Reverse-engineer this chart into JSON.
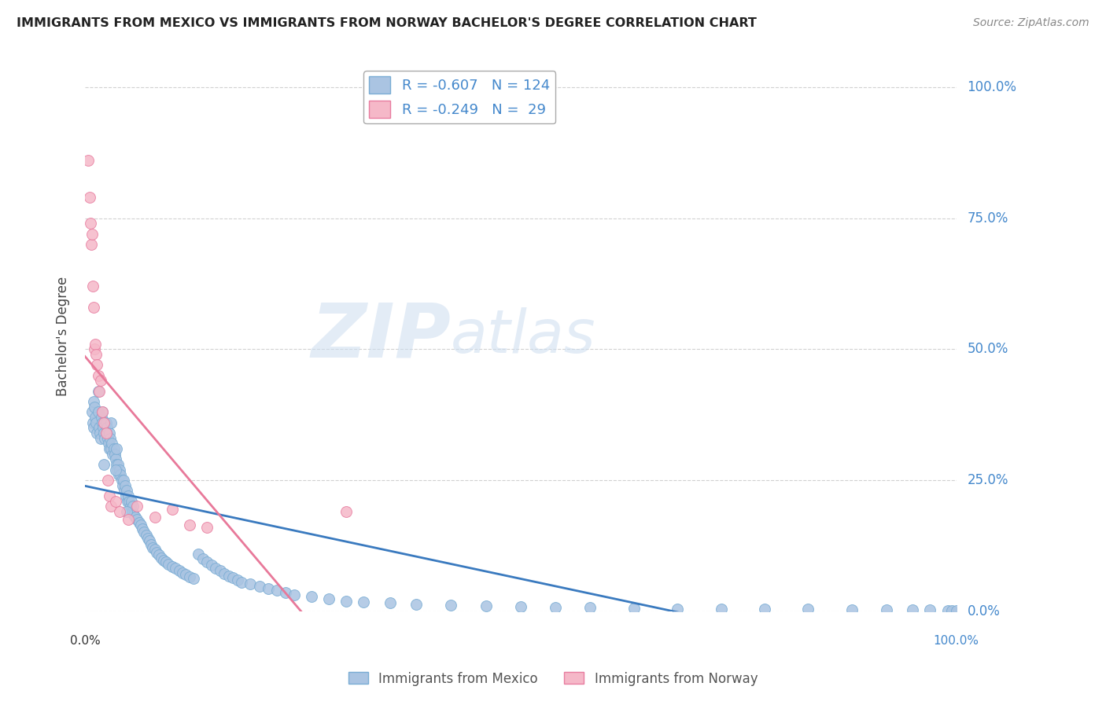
{
  "title": "IMMIGRANTS FROM MEXICO VS IMMIGRANTS FROM NORWAY BACHELOR'S DEGREE CORRELATION CHART",
  "source": "Source: ZipAtlas.com",
  "ylabel": "Bachelor's Degree",
  "xlim": [
    0.0,
    1.0
  ],
  "ylim": [
    0.0,
    1.05
  ],
  "mexico_color": "#aac4e2",
  "mexico_edge_color": "#7aadd4",
  "norway_color": "#f5b8c8",
  "norway_edge_color": "#e87da0",
  "mexico_line_color": "#3a7abf",
  "norway_line_color": "#e8799a",
  "R_mexico": -0.607,
  "N_mexico": 124,
  "R_norway": -0.249,
  "N_norway": 29,
  "watermark_zip": "ZIP",
  "watermark_atlas": "atlas",
  "legend_label_mexico": "Immigrants from Mexico",
  "legend_label_norway": "Immigrants from Norway",
  "mexico_scatter_x": [
    0.008,
    0.009,
    0.01,
    0.01,
    0.011,
    0.012,
    0.013,
    0.014,
    0.015,
    0.016,
    0.017,
    0.018,
    0.019,
    0.02,
    0.02,
    0.021,
    0.022,
    0.023,
    0.024,
    0.025,
    0.025,
    0.026,
    0.027,
    0.028,
    0.028,
    0.029,
    0.03,
    0.03,
    0.031,
    0.032,
    0.033,
    0.034,
    0.035,
    0.036,
    0.036,
    0.037,
    0.038,
    0.039,
    0.04,
    0.041,
    0.042,
    0.043,
    0.044,
    0.045,
    0.046,
    0.047,
    0.048,
    0.049,
    0.05,
    0.051,
    0.052,
    0.053,
    0.054,
    0.055,
    0.056,
    0.058,
    0.06,
    0.062,
    0.064,
    0.066,
    0.068,
    0.07,
    0.072,
    0.074,
    0.076,
    0.078,
    0.08,
    0.082,
    0.085,
    0.088,
    0.09,
    0.093,
    0.096,
    0.1,
    0.104,
    0.108,
    0.112,
    0.116,
    0.12,
    0.125,
    0.13,
    0.135,
    0.14,
    0.145,
    0.15,
    0.155,
    0.16,
    0.165,
    0.17,
    0.175,
    0.18,
    0.19,
    0.2,
    0.21,
    0.22,
    0.23,
    0.24,
    0.26,
    0.28,
    0.3,
    0.32,
    0.35,
    0.38,
    0.42,
    0.46,
    0.5,
    0.54,
    0.58,
    0.63,
    0.68,
    0.73,
    0.78,
    0.83,
    0.88,
    0.92,
    0.95,
    0.97,
    0.99,
    0.995,
    1.0,
    0.015,
    0.022,
    0.035,
    0.048
  ],
  "mexico_scatter_y": [
    0.38,
    0.36,
    0.4,
    0.35,
    0.39,
    0.37,
    0.36,
    0.34,
    0.38,
    0.35,
    0.34,
    0.33,
    0.37,
    0.36,
    0.38,
    0.35,
    0.34,
    0.33,
    0.36,
    0.34,
    0.35,
    0.33,
    0.32,
    0.34,
    0.31,
    0.33,
    0.36,
    0.31,
    0.32,
    0.3,
    0.31,
    0.3,
    0.29,
    0.28,
    0.31,
    0.27,
    0.28,
    0.26,
    0.27,
    0.26,
    0.25,
    0.24,
    0.25,
    0.23,
    0.24,
    0.22,
    0.23,
    0.21,
    0.22,
    0.21,
    0.2,
    0.21,
    0.19,
    0.2,
    0.185,
    0.18,
    0.175,
    0.17,
    0.165,
    0.158,
    0.152,
    0.146,
    0.14,
    0.135,
    0.128,
    0.122,
    0.118,
    0.112,
    0.108,
    0.102,
    0.098,
    0.094,
    0.09,
    0.086,
    0.082,
    0.078,
    0.074,
    0.07,
    0.066,
    0.063,
    0.11,
    0.1,
    0.095,
    0.088,
    0.082,
    0.078,
    0.072,
    0.068,
    0.064,
    0.06,
    0.056,
    0.052,
    0.048,
    0.044,
    0.04,
    0.036,
    0.032,
    0.028,
    0.024,
    0.02,
    0.018,
    0.016,
    0.014,
    0.012,
    0.01,
    0.009,
    0.008,
    0.007,
    0.006,
    0.005,
    0.005,
    0.004,
    0.004,
    0.003,
    0.003,
    0.003,
    0.003,
    0.002,
    0.002,
    0.002,
    0.42,
    0.28,
    0.27,
    0.19
  ],
  "norway_scatter_x": [
    0.004,
    0.005,
    0.006,
    0.007,
    0.008,
    0.009,
    0.01,
    0.011,
    0.012,
    0.013,
    0.014,
    0.015,
    0.016,
    0.018,
    0.02,
    0.022,
    0.024,
    0.026,
    0.028,
    0.03,
    0.035,
    0.04,
    0.05,
    0.06,
    0.08,
    0.1,
    0.12,
    0.14,
    0.3
  ],
  "norway_scatter_y": [
    0.86,
    0.79,
    0.74,
    0.7,
    0.72,
    0.62,
    0.58,
    0.5,
    0.51,
    0.49,
    0.47,
    0.45,
    0.42,
    0.44,
    0.38,
    0.36,
    0.34,
    0.25,
    0.22,
    0.2,
    0.21,
    0.19,
    0.175,
    0.2,
    0.18,
    0.195,
    0.165,
    0.16,
    0.19
  ],
  "background_color": "#ffffff",
  "grid_color": "#cccccc",
  "title_color": "#222222",
  "axis_color": "#4488cc"
}
